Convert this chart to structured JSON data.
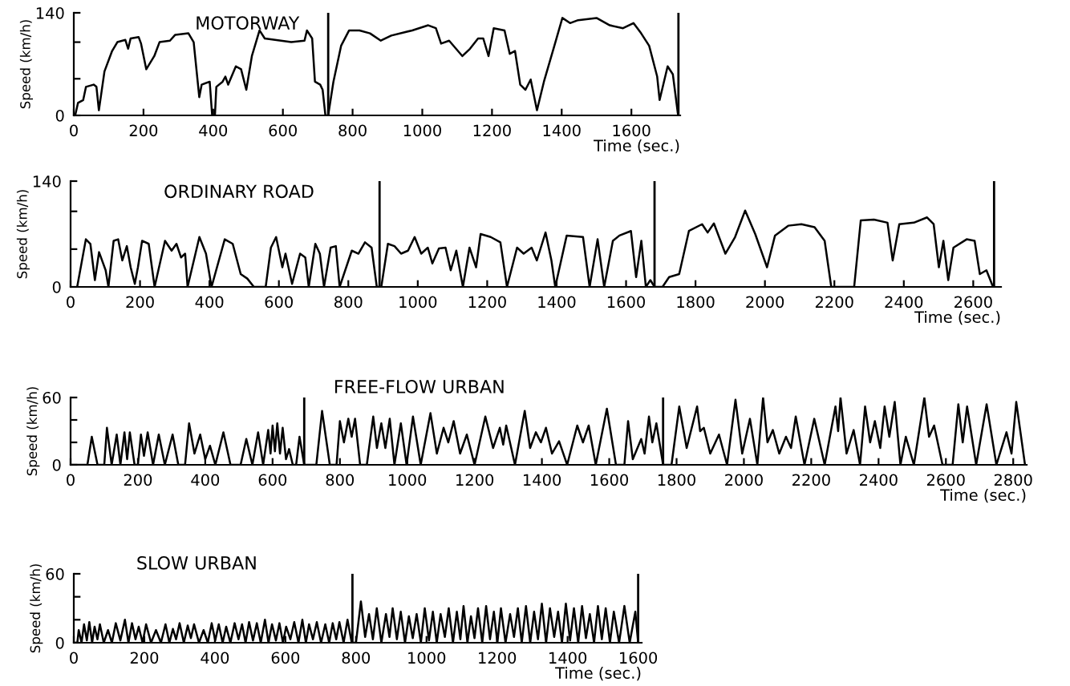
{
  "chart_data": [
    {
      "type": "line",
      "title": "MOTORWAY",
      "xlabel": "Time (sec.)",
      "ylabel": "Speed (km/h)",
      "color": "#000000",
      "x": [
        4,
        12,
        27,
        35,
        57,
        65,
        72,
        88,
        110,
        125,
        148,
        156,
        163,
        186,
        193,
        208,
        231,
        246,
        276,
        291,
        329,
        344,
        360,
        367,
        390,
        397,
        405,
        409,
        427,
        435,
        443,
        465,
        480,
        495,
        511,
        533,
        548,
        624,
        662,
        669,
        684,
        692,
        707,
        714,
        722,
        730,
        745,
        767,
        790,
        820,
        850,
        881,
        911,
        971,
        1017,
        1039,
        1054,
        1077,
        1115,
        1137,
        1160,
        1175,
        1190,
        1205,
        1236,
        1251,
        1266,
        1281,
        1296,
        1311,
        1329,
        1349,
        1379,
        1402,
        1424,
        1447,
        1500,
        1538,
        1576,
        1606,
        1628,
        1651,
        1674,
        1681,
        1704,
        1719,
        1734
      ],
      "values": [
        0,
        17,
        21,
        39,
        42,
        39,
        7,
        60,
        88,
        100,
        103,
        91,
        105,
        107,
        98,
        63,
        81,
        100,
        102,
        110,
        112,
        100,
        25,
        42,
        46,
        0,
        0,
        39,
        46,
        53,
        42,
        67,
        63,
        35,
        81,
        116,
        105,
        100,
        102,
        116,
        105,
        46,
        42,
        35,
        0,
        0,
        46,
        95,
        116,
        116,
        112,
        102,
        109,
        116,
        123,
        119,
        98,
        102,
        81,
        91,
        105,
        105,
        81,
        119,
        116,
        84,
        88,
        42,
        35,
        49,
        7,
        46,
        95,
        133,
        126,
        130,
        133,
        123,
        119,
        126,
        112,
        95,
        53,
        21,
        67,
        56,
        0
      ],
      "xlim": [
        0,
        1740
      ],
      "xticks": [
        0,
        200,
        400,
        600,
        800,
        1000,
        1200,
        1400,
        1600
      ],
      "ylim": [
        0,
        140
      ],
      "yticks": [
        0,
        {
          "value": 50,
          "label": null
        },
        {
          "value": 100,
          "label": null
        },
        140
      ],
      "ref_lines": [
        {
          "axis": "x",
          "value": 730
        },
        {
          "axis": "x",
          "value": 1735
        }
      ]
    },
    {
      "type": "line",
      "title": "ORDINARY ROAD",
      "xlabel": "Time (sec.)",
      "ylabel": "Speed (km/h)",
      "color": "#000000",
      "x": [
        19,
        44,
        57,
        70,
        82,
        101,
        109,
        124,
        137,
        149,
        162,
        173,
        185,
        194,
        206,
        225,
        242,
        272,
        291,
        305,
        318,
        330,
        337,
        371,
        390,
        406,
        444,
        467,
        490,
        509,
        528,
        562,
        577,
        592,
        610,
        619,
        638,
        661,
        676,
        686,
        705,
        718,
        730,
        749,
        764,
        775,
        810,
        829,
        848,
        867,
        882,
        895,
        914,
        933,
        952,
        972,
        991,
        1010,
        1029,
        1042,
        1061,
        1080,
        1095,
        1111,
        1130,
        1149,
        1168,
        1181,
        1210,
        1238,
        1257,
        1286,
        1305,
        1328,
        1343,
        1368,
        1385,
        1396,
        1429,
        1476,
        1495,
        1518,
        1537,
        1562,
        1581,
        1614,
        1629,
        1644,
        1657,
        1670,
        1682,
        1705,
        1724,
        1753,
        1781,
        1819,
        1835,
        1853,
        1886,
        1914,
        1943,
        1972,
        2006,
        2029,
        2067,
        2105,
        2143,
        2172,
        2191,
        2257,
        2276,
        2314,
        2353,
        2368,
        2387,
        2429,
        2467,
        2486,
        2501,
        2514,
        2528,
        2543,
        2581,
        2604,
        2619,
        2638,
        2657
      ],
      "values": [
        0,
        63,
        57,
        9,
        46,
        22,
        0,
        61,
        63,
        35,
        54,
        26,
        4,
        26,
        61,
        57,
        0,
        61,
        48,
        57,
        39,
        44,
        0,
        66,
        44,
        0,
        63,
        57,
        17,
        11,
        0,
        0,
        52,
        66,
        26,
        44,
        4,
        44,
        39,
        0,
        57,
        44,
        0,
        52,
        54,
        0,
        48,
        44,
        59,
        52,
        0,
        0,
        57,
        54,
        44,
        48,
        66,
        44,
        52,
        31,
        51,
        52,
        22,
        48,
        0,
        52,
        26,
        70,
        66,
        59,
        0,
        52,
        44,
        52,
        35,
        72,
        35,
        0,
        68,
        66,
        0,
        63,
        0,
        61,
        68,
        74,
        13,
        61,
        0,
        9,
        0,
        0,
        13,
        17,
        74,
        83,
        72,
        84,
        44,
        66,
        101,
        70,
        26,
        68,
        81,
        83,
        79,
        61,
        0,
        0,
        88,
        89,
        85,
        35,
        83,
        85,
        92,
        83,
        26,
        61,
        9,
        52,
        63,
        61,
        17,
        22,
        0
      ],
      "xlim": [
        0,
        2680
      ],
      "xticks": [
        0,
        200,
        400,
        600,
        800,
        1000,
        1200,
        1400,
        1600,
        1800,
        2000,
        2200,
        2400,
        2600
      ],
      "ylim": [
        0,
        140
      ],
      "yticks": [
        0,
        {
          "value": 50,
          "label": null
        },
        {
          "value": 100,
          "label": null
        },
        140
      ],
      "ref_lines": [
        {
          "axis": "x",
          "value": 890
        },
        {
          "axis": "x",
          "value": 1682
        },
        {
          "axis": "x",
          "value": 2660
        }
      ]
    },
    {
      "type": "line",
      "title": "FREE-FLOW URBAN",
      "xlabel": "Time (sec.)",
      "ylabel": "Speed (km/h)",
      "color": "#000000",
      "x": [
        0,
        50,
        63,
        80,
        100,
        108,
        122,
        137,
        148,
        160,
        168,
        176,
        190,
        200,
        209,
        218,
        229,
        245,
        262,
        280,
        303,
        320,
        340,
        352,
        368,
        385,
        400,
        414,
        430,
        454,
        475,
        505,
        522,
        540,
        557,
        572,
        587,
        594,
        600,
        607,
        614,
        622,
        630,
        640,
        649,
        660,
        670,
        680,
        694,
        730,
        747,
        770,
        790,
        800,
        812,
        825,
        835,
        845,
        860,
        880,
        899,
        910,
        923,
        935,
        948,
        962,
        981,
        998,
        1017,
        1040,
        1069,
        1088,
        1108,
        1122,
        1138,
        1157,
        1177,
        1200,
        1232,
        1255,
        1275,
        1285,
        1294,
        1320,
        1349,
        1365,
        1382,
        1397,
        1412,
        1430,
        1451,
        1475,
        1505,
        1522,
        1539,
        1560,
        1593,
        1620,
        1645,
        1656,
        1670,
        1695,
        1705,
        1718,
        1728,
        1740,
        1760,
        1785,
        1808,
        1830,
        1861,
        1870,
        1881,
        1900,
        1926,
        1950,
        1975,
        1995,
        2018,
        2040,
        2057,
        2070,
        2086,
        2105,
        2125,
        2140,
        2154,
        2180,
        2209,
        2240,
        2272,
        2280,
        2287,
        2305,
        2326,
        2345,
        2360,
        2375,
        2389,
        2405,
        2418,
        2432,
        2448,
        2465,
        2481,
        2505,
        2536,
        2550,
        2565,
        2590,
        2620,
        2637,
        2650,
        2663,
        2690,
        2721,
        2750,
        2780,
        2795,
        2809,
        2835
      ],
      "values": [
        0,
        0,
        25,
        0,
        0,
        33,
        0,
        27,
        0,
        29,
        5,
        29,
        0,
        0,
        27,
        8,
        29,
        0,
        27,
        0,
        27,
        0,
        0,
        37,
        10,
        27,
        5,
        17,
        0,
        29,
        0,
        0,
        23,
        0,
        29,
        0,
        31,
        10,
        35,
        12,
        37,
        10,
        33,
        5,
        14,
        0,
        0,
        25,
        0,
        0,
        48,
        0,
        0,
        39,
        20,
        41,
        25,
        41,
        0,
        0,
        43,
        15,
        37,
        15,
        41,
        0,
        37,
        0,
        43,
        0,
        46,
        10,
        33,
        20,
        39,
        10,
        27,
        0,
        43,
        15,
        33,
        18,
        35,
        0,
        48,
        15,
        29,
        20,
        33,
        10,
        21,
        0,
        35,
        20,
        35,
        0,
        50,
        0,
        0,
        39,
        5,
        23,
        10,
        43,
        20,
        37,
        0,
        0,
        52,
        15,
        52,
        30,
        33,
        10,
        27,
        0,
        58,
        10,
        41,
        0,
        60,
        20,
        31,
        10,
        25,
        15,
        43,
        0,
        41,
        0,
        52,
        30,
        60,
        10,
        31,
        0,
        52,
        20,
        39,
        15,
        52,
        25,
        56,
        0,
        25,
        0,
        60,
        25,
        35,
        0,
        0,
        54,
        20,
        52,
        0,
        54,
        0,
        29,
        10,
        56,
        0
      ],
      "xlim": [
        0,
        2840
      ],
      "xticks": [
        0,
        200,
        400,
        600,
        800,
        1000,
        1200,
        1400,
        1600,
        1800,
        2000,
        2200,
        2400,
        2600,
        2800
      ],
      "ylim": [
        0,
        60
      ],
      "yticks": [
        0,
        {
          "value": 20,
          "label": null
        },
        {
          "value": 40,
          "label": null
        },
        60
      ],
      "ref_lines": [
        {
          "axis": "x",
          "value": 694
        },
        {
          "axis": "x",
          "value": 1760
        }
      ]
    },
    {
      "type": "line",
      "title": "SLOW URBAN",
      "xlabel": "Time (sec.)",
      "ylabel": "Speed (km/h)",
      "color": "#000000",
      "x": [
        0,
        10,
        14,
        22,
        29,
        37,
        44,
        52,
        59,
        67,
        74,
        85,
        97,
        108,
        119,
        132,
        145,
        155,
        165,
        175,
        184,
        195,
        205,
        219,
        233,
        247,
        260,
        271,
        281,
        290,
        300,
        312,
        323,
        332,
        341,
        355,
        368,
        380,
        391,
        401,
        411,
        422,
        432,
        444,
        456,
        467,
        477,
        487,
        497,
        508,
        519,
        530,
        542,
        552,
        562,
        573,
        583,
        593,
        602,
        614,
        625,
        637,
        648,
        658,
        667,
        678,
        689,
        701,
        713,
        724,
        734,
        744,
        753,
        765,
        776,
        788,
        800,
        814,
        826,
        837,
        848,
        859,
        872,
        885,
        895,
        904,
        916,
        927,
        939,
        950,
        961,
        972,
        984,
        995,
        1007,
        1018,
        1029,
        1040,
        1052,
        1063,
        1075,
        1086,
        1096,
        1105,
        1116,
        1126,
        1136,
        1146,
        1158,
        1169,
        1180,
        1191,
        1201,
        1211,
        1224,
        1237,
        1248,
        1259,
        1270,
        1282,
        1294,
        1305,
        1316,
        1327,
        1339,
        1350,
        1362,
        1373,
        1384,
        1395,
        1407,
        1418,
        1430,
        1441,
        1452,
        1463,
        1475,
        1486,
        1497,
        1508,
        1520,
        1531,
        1546,
        1561,
        1576,
        1592,
        1600
      ],
      "values": [
        0,
        0,
        11,
        0,
        16,
        2,
        18,
        0,
        14,
        3,
        16,
        0,
        11,
        0,
        17,
        2,
        20,
        0,
        17,
        3,
        14,
        0,
        16,
        0,
        11,
        0,
        16,
        0,
        12,
        3,
        17,
        0,
        15,
        4,
        16,
        0,
        11,
        0,
        17,
        2,
        16,
        0,
        14,
        0,
        17,
        3,
        16,
        0,
        18,
        2,
        17,
        0,
        20,
        0,
        16,
        2,
        17,
        0,
        14,
        3,
        18,
        0,
        20,
        0,
        16,
        3,
        18,
        0,
        16,
        0,
        17,
        3,
        18,
        0,
        20,
        0,
        0,
        36,
        5,
        25,
        3,
        30,
        0,
        25,
        5,
        30,
        3,
        27,
        0,
        23,
        4,
        25,
        0,
        30,
        2,
        27,
        0,
        25,
        5,
        30,
        0,
        27,
        3,
        32,
        0,
        23,
        4,
        30,
        0,
        32,
        3,
        27,
        0,
        30,
        0,
        25,
        5,
        30,
        0,
        32,
        0,
        27,
        3,
        34,
        0,
        30,
        5,
        27,
        0,
        34,
        2,
        30,
        0,
        32,
        4,
        25,
        0,
        32,
        3,
        30,
        0,
        27,
        0,
        32,
        0,
        27,
        0
      ],
      "xlim": [
        0,
        1610
      ],
      "xticks": [
        0,
        200,
        400,
        600,
        800,
        1000,
        1200,
        1400,
        1600
      ],
      "ylim": [
        0,
        60
      ],
      "yticks": [
        0,
        {
          "value": 20,
          "label": null
        },
        {
          "value": 40,
          "label": null
        },
        60
      ],
      "ref_lines": [
        {
          "axis": "x",
          "value": 790
        },
        {
          "axis": "x",
          "value": 1600
        }
      ]
    }
  ]
}
